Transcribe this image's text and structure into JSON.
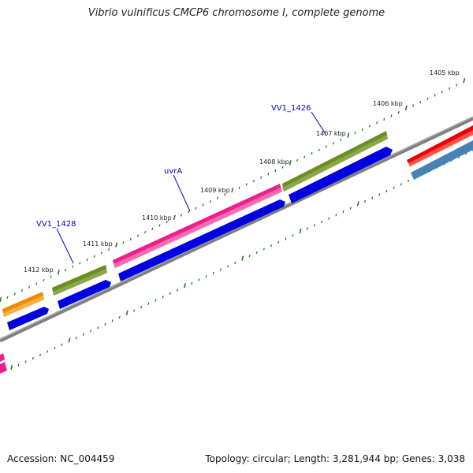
{
  "title": "Vibrio vulnificus CMCP6 chromosome I, complete genome",
  "footer": {
    "accession": "Accession: NC_004459",
    "summary": "Topology: circular; Length: 3,281,944 bp; Genes: 3,038"
  },
  "ticks": [
    "1405 kbp",
    "1406 kbp",
    "1407 kbp",
    "1408 kbp",
    "1409 kbp",
    "1410 kbp",
    "1411 kbp",
    "1412 kbp"
  ],
  "gene_labels": [
    "VV1_1426",
    "uvrA",
    "VV1_1428"
  ],
  "colors": {
    "backbone": "#808080",
    "tick": "#1f7a1f",
    "label": "#0000cc",
    "green": "#6b8e23",
    "pink": "#ee1f8c",
    "blue": "#0000e0",
    "orange": "#f08a00",
    "red": "#ee0000",
    "steelblue": "#4682b4"
  }
}
